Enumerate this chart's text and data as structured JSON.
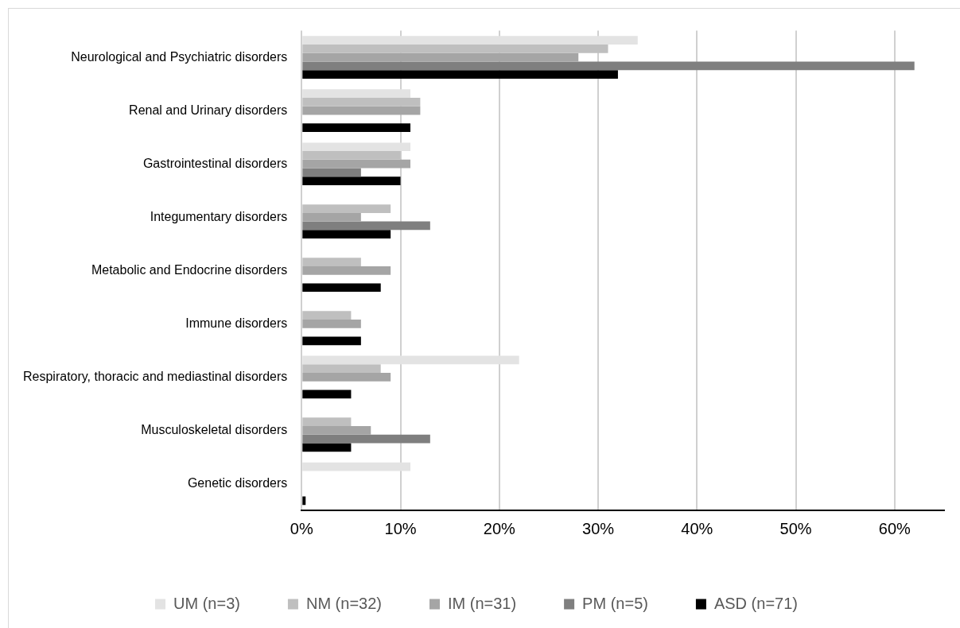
{
  "chart_data": {
    "type": "bar",
    "orientation": "horizontal",
    "categories": [
      "Neurological and Psychiatric disorders",
      "Renal and Urinary disorders",
      "Gastrointestinal disorders",
      "Integumentary disorders",
      "Metabolic and Endocrine disorders",
      "Immune disorders",
      "Respiratory, thoracic and mediastinal disorders",
      "Musculoskeletal disorders",
      "Genetic disorders"
    ],
    "series": [
      {
        "name": "UM (n=3)",
        "color": "#e3e3e3",
        "values": [
          34,
          11,
          11,
          0,
          0,
          0,
          22,
          0,
          11
        ]
      },
      {
        "name": "NM (n=32)",
        "color": "#bfbfbf",
        "values": [
          31,
          12,
          10,
          9,
          6,
          5,
          8,
          5,
          0
        ]
      },
      {
        "name": "IM (n=31)",
        "color": "#a5a5a5",
        "values": [
          28,
          12,
          11,
          6,
          9,
          6,
          9,
          7,
          0
        ]
      },
      {
        "name": "PM (n=5)",
        "color": "#7f7f7f",
        "values": [
          62,
          0,
          6,
          13,
          0,
          0,
          0,
          13,
          0
        ]
      },
      {
        "name": "ASD (n=71)",
        "color": "#000000",
        "values": [
          32,
          11,
          10,
          9,
          8,
          6,
          5,
          5,
          0.4
        ]
      }
    ],
    "xlim": [
      0,
      65
    ],
    "xticks": [
      {
        "value": 0,
        "label": "0%"
      },
      {
        "value": 10,
        "label": "10%"
      },
      {
        "value": 20,
        "label": "20%"
      },
      {
        "value": 30,
        "label": "30%"
      },
      {
        "value": 40,
        "label": "40%"
      },
      {
        "value": 50,
        "label": "50%"
      },
      {
        "value": 60,
        "label": "60%"
      }
    ],
    "grid": "x",
    "legend": "bottom"
  }
}
